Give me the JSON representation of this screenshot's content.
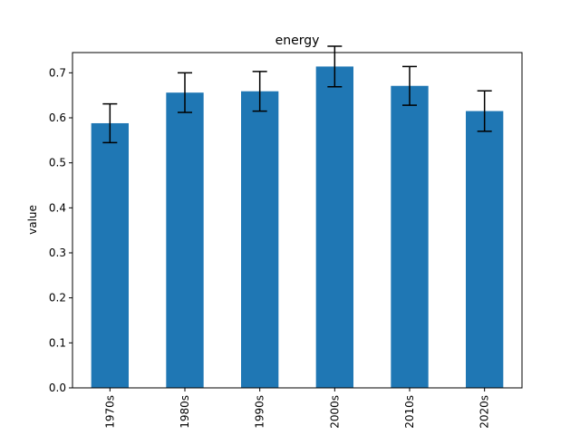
{
  "chart_data": {
    "type": "bar",
    "title": "energy",
    "xlabel": "",
    "ylabel": "value",
    "categories": [
      "1970s",
      "1980s",
      "1990s",
      "2000s",
      "2010s",
      "2020s"
    ],
    "values": [
      0.588,
      0.656,
      0.659,
      0.714,
      0.671,
      0.615
    ],
    "error": [
      0.043,
      0.044,
      0.044,
      0.045,
      0.043,
      0.045
    ],
    "ylim": [
      0,
      0.745
    ],
    "yticks": [
      0.0,
      0.1,
      0.2,
      0.3,
      0.4,
      0.5,
      0.6,
      0.7
    ],
    "ytick_labels": [
      "0.0",
      "0.1",
      "0.2",
      "0.3",
      "0.4",
      "0.5",
      "0.6",
      "0.7"
    ],
    "grid": false,
    "colors": {
      "bar": "#1f77b4",
      "error": "#000000"
    }
  }
}
